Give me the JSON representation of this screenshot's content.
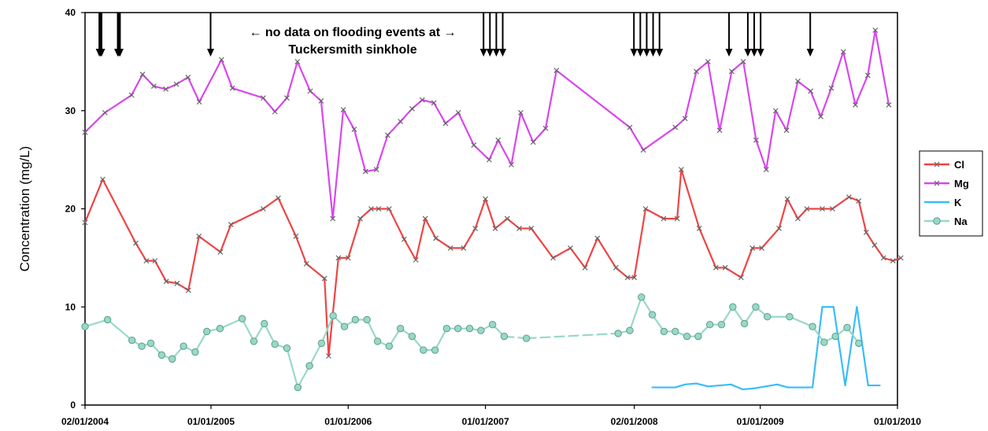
{
  "chart_data": {
    "type": "line",
    "title": "",
    "ylabel": "Concentration   (mg/L)",
    "xlabel": "",
    "ylim": [
      0,
      40
    ],
    "yticks": [
      "0",
      "10",
      "20",
      "30",
      "40"
    ],
    "xlim": [
      "2004-02-01",
      "2010-01-01"
    ],
    "xticks": [
      {
        "date": "2004-02-01",
        "label": "02/01/2004"
      },
      {
        "date": "2005-01-01",
        "label": "01/01/2005"
      },
      {
        "date": "2006-01-01",
        "label": "01/01/2006"
      },
      {
        "date": "2007-01-01",
        "label": "01/01/2007"
      },
      {
        "date": "2008-02-01",
        "label": "02/01/2008"
      },
      {
        "date": "2009-01-01",
        "label": "01/01/2009"
      },
      {
        "date": "2010-01-01",
        "label": "01/01/2010"
      }
    ],
    "grid": false,
    "legend_position": "right",
    "annotation": {
      "line1": "← no data on flooding events at →",
      "line2": "Tuckersmith sinkhole"
    },
    "flood_events": [
      "2004-03-10",
      "2004-03-13",
      "2004-03-16",
      "2004-04-28",
      "2004-05-01",
      "2004-05-04",
      "2004-12-31",
      "2006-12-27",
      "2007-01-13",
      "2007-01-30",
      "2007-02-16",
      "2008-01-31",
      "2008-02-17",
      "2008-03-05",
      "2008-03-22",
      "2008-04-08",
      "2008-10-10",
      "2008-11-29",
      "2008-12-16",
      "2009-01-02",
      "2009-05-14"
    ],
    "series": [
      {
        "name": "Cl",
        "color": "#ef4444",
        "marker": "x",
        "dashed": false,
        "points": [
          [
            "2004-02-01",
            18.6
          ],
          [
            "2004-03-19",
            23.0
          ],
          [
            "2004-06-15",
            16.5
          ],
          [
            "2004-07-13",
            14.7
          ],
          [
            "2004-08-05",
            14.7
          ],
          [
            "2004-09-04",
            12.6
          ],
          [
            "2004-10-03",
            12.4
          ],
          [
            "2004-11-02",
            11.7
          ],
          [
            "2004-11-30",
            17.2
          ],
          [
            "2005-01-26",
            15.6
          ],
          [
            "2005-02-23",
            18.4
          ],
          [
            "2005-05-20",
            20.0
          ],
          [
            "2005-06-29",
            21.1
          ],
          [
            "2005-08-15",
            17.2
          ],
          [
            "2005-09-12",
            14.4
          ],
          [
            "2005-10-30",
            12.9
          ],
          [
            "2005-11-10",
            5.0
          ],
          [
            "2005-12-06",
            15.0
          ],
          [
            "2006-01-01",
            15.0
          ],
          [
            "2006-02-02",
            19.0
          ],
          [
            "2006-03-03",
            20.0
          ],
          [
            "2006-03-23",
            20.0
          ],
          [
            "2006-04-20",
            20.0
          ],
          [
            "2006-05-30",
            16.9
          ],
          [
            "2006-06-30",
            14.8
          ],
          [
            "2006-07-25",
            19.0
          ],
          [
            "2006-08-22",
            17.0
          ],
          [
            "2006-09-30",
            16.0
          ],
          [
            "2006-11-04",
            16.0
          ],
          [
            "2006-12-05",
            18.0
          ],
          [
            "2007-01-01",
            21.0
          ],
          [
            "2007-01-27",
            18.0
          ],
          [
            "2007-02-28",
            19.0
          ],
          [
            "2007-04-01",
            18.0
          ],
          [
            "2007-05-03",
            18.0
          ],
          [
            "2007-06-30",
            15.0
          ],
          [
            "2007-08-15",
            16.0
          ],
          [
            "2007-09-23",
            14.0
          ],
          [
            "2007-10-26",
            17.0
          ],
          [
            "2007-12-14",
            14.0
          ],
          [
            "2008-01-14",
            13.0
          ],
          [
            "2008-02-01",
            13.0
          ],
          [
            "2008-03-02",
            20.0
          ],
          [
            "2008-04-19",
            19.0
          ],
          [
            "2008-05-25",
            19.0
          ],
          [
            "2008-06-05",
            24.0
          ],
          [
            "2008-07-23",
            18.0
          ],
          [
            "2008-09-05",
            14.0
          ],
          [
            "2008-09-30",
            14.0
          ],
          [
            "2008-11-11",
            13.0
          ],
          [
            "2008-12-11",
            16.0
          ],
          [
            "2009-01-05",
            16.0
          ],
          [
            "2009-02-20",
            18.0
          ],
          [
            "2009-03-14",
            21.0
          ],
          [
            "2009-04-11",
            19.0
          ],
          [
            "2009-05-05",
            20.0
          ],
          [
            "2009-06-15",
            20.0
          ],
          [
            "2009-07-12",
            20.0
          ],
          [
            "2009-08-25",
            21.2
          ],
          [
            "2009-09-20",
            20.8
          ],
          [
            "2009-10-10",
            17.6
          ],
          [
            "2009-11-01",
            16.3
          ],
          [
            "2009-11-25",
            15.0
          ],
          [
            "2009-12-20",
            14.7
          ],
          [
            "2010-01-10",
            15.0
          ]
        ]
      },
      {
        "name": "Mg",
        "color": "#d946ef",
        "marker": "x",
        "dashed": false,
        "points": [
          [
            "2004-02-01",
            27.8
          ],
          [
            "2004-03-25",
            29.8
          ],
          [
            "2004-06-04",
            31.6
          ],
          [
            "2004-07-03",
            33.7
          ],
          [
            "2004-08-02",
            32.5
          ],
          [
            "2004-09-03",
            32.2
          ],
          [
            "2004-10-01",
            32.7
          ],
          [
            "2004-11-01",
            33.4
          ],
          [
            "2004-12-01",
            30.9
          ],
          [
            "2005-01-29",
            35.2
          ],
          [
            "2005-02-27",
            32.3
          ],
          [
            "2005-05-20",
            31.3
          ],
          [
            "2005-06-20",
            29.9
          ],
          [
            "2005-07-22",
            31.3
          ],
          [
            "2005-08-19",
            35.0
          ],
          [
            "2005-09-22",
            32.0
          ],
          [
            "2005-10-21",
            31.0
          ],
          [
            "2005-11-21",
            19.0
          ],
          [
            "2005-12-19",
            30.1
          ],
          [
            "2006-01-17",
            28.1
          ],
          [
            "2006-02-16",
            23.8
          ],
          [
            "2006-03-17",
            24.0
          ],
          [
            "2006-04-16",
            27.5
          ],
          [
            "2006-05-20",
            28.9
          ],
          [
            "2006-06-20",
            30.2
          ],
          [
            "2006-07-17",
            31.1
          ],
          [
            "2006-08-17",
            30.8
          ],
          [
            "2006-09-17",
            28.7
          ],
          [
            "2006-10-21",
            29.8
          ],
          [
            "2006-12-01",
            26.5
          ],
          [
            "2007-01-11",
            25.0
          ],
          [
            "2007-02-04",
            27.0
          ],
          [
            "2007-03-11",
            24.5
          ],
          [
            "2007-04-05",
            29.8
          ],
          [
            "2007-05-08",
            26.8
          ],
          [
            "2007-06-10",
            28.2
          ],
          [
            "2007-07-09",
            34.1
          ],
          [
            "2008-01-20",
            28.3
          ],
          [
            "2008-02-25",
            26.0
          ],
          [
            "2008-05-20",
            28.3
          ],
          [
            "2008-06-15",
            29.2
          ],
          [
            "2008-07-15",
            34.0
          ],
          [
            "2008-08-15",
            35.0
          ],
          [
            "2008-09-15",
            28.0
          ],
          [
            "2008-10-17",
            34.0
          ],
          [
            "2008-11-17",
            35.0
          ],
          [
            "2008-12-21",
            27.0
          ],
          [
            "2009-01-17",
            24.0
          ],
          [
            "2009-02-11",
            30.0
          ],
          [
            "2009-03-12",
            28.0
          ],
          [
            "2009-04-11",
            33.0
          ],
          [
            "2009-05-15",
            32.0
          ],
          [
            "2009-06-11",
            29.4
          ],
          [
            "2009-07-09",
            32.3
          ],
          [
            "2009-08-10",
            36.0
          ],
          [
            "2009-09-11",
            30.6
          ],
          [
            "2009-10-14",
            33.6
          ],
          [
            "2009-11-03",
            38.2
          ],
          [
            "2009-12-09",
            30.6
          ]
        ]
      },
      {
        "name": "K",
        "color": "#38bdf8",
        "marker": "none",
        "dashed": false,
        "points": [
          [
            "2008-03-20",
            1.8
          ],
          [
            "2008-05-20",
            1.8
          ],
          [
            "2008-06-15",
            2.1
          ],
          [
            "2008-07-15",
            2.2
          ],
          [
            "2008-08-15",
            1.9
          ],
          [
            "2008-09-15",
            2.0
          ],
          [
            "2008-10-15",
            2.1
          ],
          [
            "2008-11-15",
            1.6
          ],
          [
            "2008-12-15",
            1.7
          ],
          [
            "2009-01-15",
            1.9
          ],
          [
            "2009-02-15",
            2.1
          ],
          [
            "2009-03-15",
            1.8
          ],
          [
            "2009-05-20",
            1.8
          ],
          [
            "2009-06-15",
            10.0
          ],
          [
            "2009-07-15",
            10.0
          ],
          [
            "2009-08-15",
            2.0
          ],
          [
            "2009-09-15",
            10.0
          ],
          [
            "2009-10-15",
            2.0
          ],
          [
            "2009-11-15",
            2.0
          ]
        ]
      },
      {
        "name": "Na",
        "color": "#99d8c9",
        "marker": "circle",
        "dashed": false,
        "points": [
          [
            "2004-02-01",
            8.0
          ],
          [
            "2004-04-01",
            8.7
          ],
          [
            "2004-06-05",
            6.6
          ],
          [
            "2004-07-01",
            6.0
          ],
          [
            "2004-07-25",
            6.3
          ],
          [
            "2004-08-23",
            5.1
          ],
          [
            "2004-09-20",
            4.7
          ],
          [
            "2004-10-20",
            6.0
          ],
          [
            "2004-11-20",
            5.4
          ],
          [
            "2004-12-21",
            7.5
          ],
          [
            "2005-01-25",
            7.8
          ],
          [
            "2005-03-25",
            8.8
          ],
          [
            "2005-04-25",
            6.5
          ],
          [
            "2005-05-23",
            8.3
          ],
          [
            "2005-06-20",
            6.2
          ],
          [
            "2005-07-22",
            5.8
          ],
          [
            "2005-08-20",
            1.8
          ],
          [
            "2005-09-20",
            4.0
          ],
          [
            "2005-10-22",
            6.3
          ],
          [
            "2005-11-22",
            9.1
          ],
          [
            "2005-12-22",
            8.0
          ],
          [
            "2006-01-20",
            8.7
          ],
          [
            "2006-02-20",
            8.7
          ],
          [
            "2006-03-20",
            6.5
          ],
          [
            "2006-04-20",
            6.0
          ],
          [
            "2006-05-20",
            7.8
          ],
          [
            "2006-06-20",
            7.0
          ],
          [
            "2006-07-20",
            5.6
          ],
          [
            "2006-08-20",
            5.6
          ],
          [
            "2006-09-20",
            7.8
          ],
          [
            "2006-10-20",
            7.8
          ],
          [
            "2006-11-20",
            7.8
          ],
          [
            "2006-12-20",
            7.6
          ],
          [
            "2007-01-20",
            8.2
          ],
          [
            "2007-02-20",
            7.0
          ],
          [
            "2007-04-20",
            6.8
          ],
          [
            "2007-12-20",
            7.3
          ],
          [
            "2008-01-20",
            7.6
          ],
          [
            "2008-02-20",
            11.0
          ],
          [
            "2008-03-20",
            9.2
          ],
          [
            "2008-04-20",
            7.5
          ],
          [
            "2008-05-20",
            7.5
          ],
          [
            "2008-06-20",
            7.0
          ],
          [
            "2008-07-20",
            7.0
          ],
          [
            "2008-08-20",
            8.2
          ],
          [
            "2008-09-20",
            8.2
          ],
          [
            "2008-10-20",
            10.0
          ],
          [
            "2008-11-20",
            8.3
          ],
          [
            "2008-12-20",
            10.0
          ],
          [
            "2009-01-20",
            9.0
          ],
          [
            "2009-03-20",
            9.0
          ],
          [
            "2009-05-20",
            8.0
          ],
          [
            "2009-06-20",
            6.4
          ],
          [
            "2009-07-20",
            7.0
          ],
          [
            "2009-08-20",
            7.9
          ],
          [
            "2009-09-20",
            6.3
          ]
        ],
        "dashed_ranges": [
          [
            "2007-02-20",
            "2008-01-20"
          ]
        ]
      }
    ]
  }
}
